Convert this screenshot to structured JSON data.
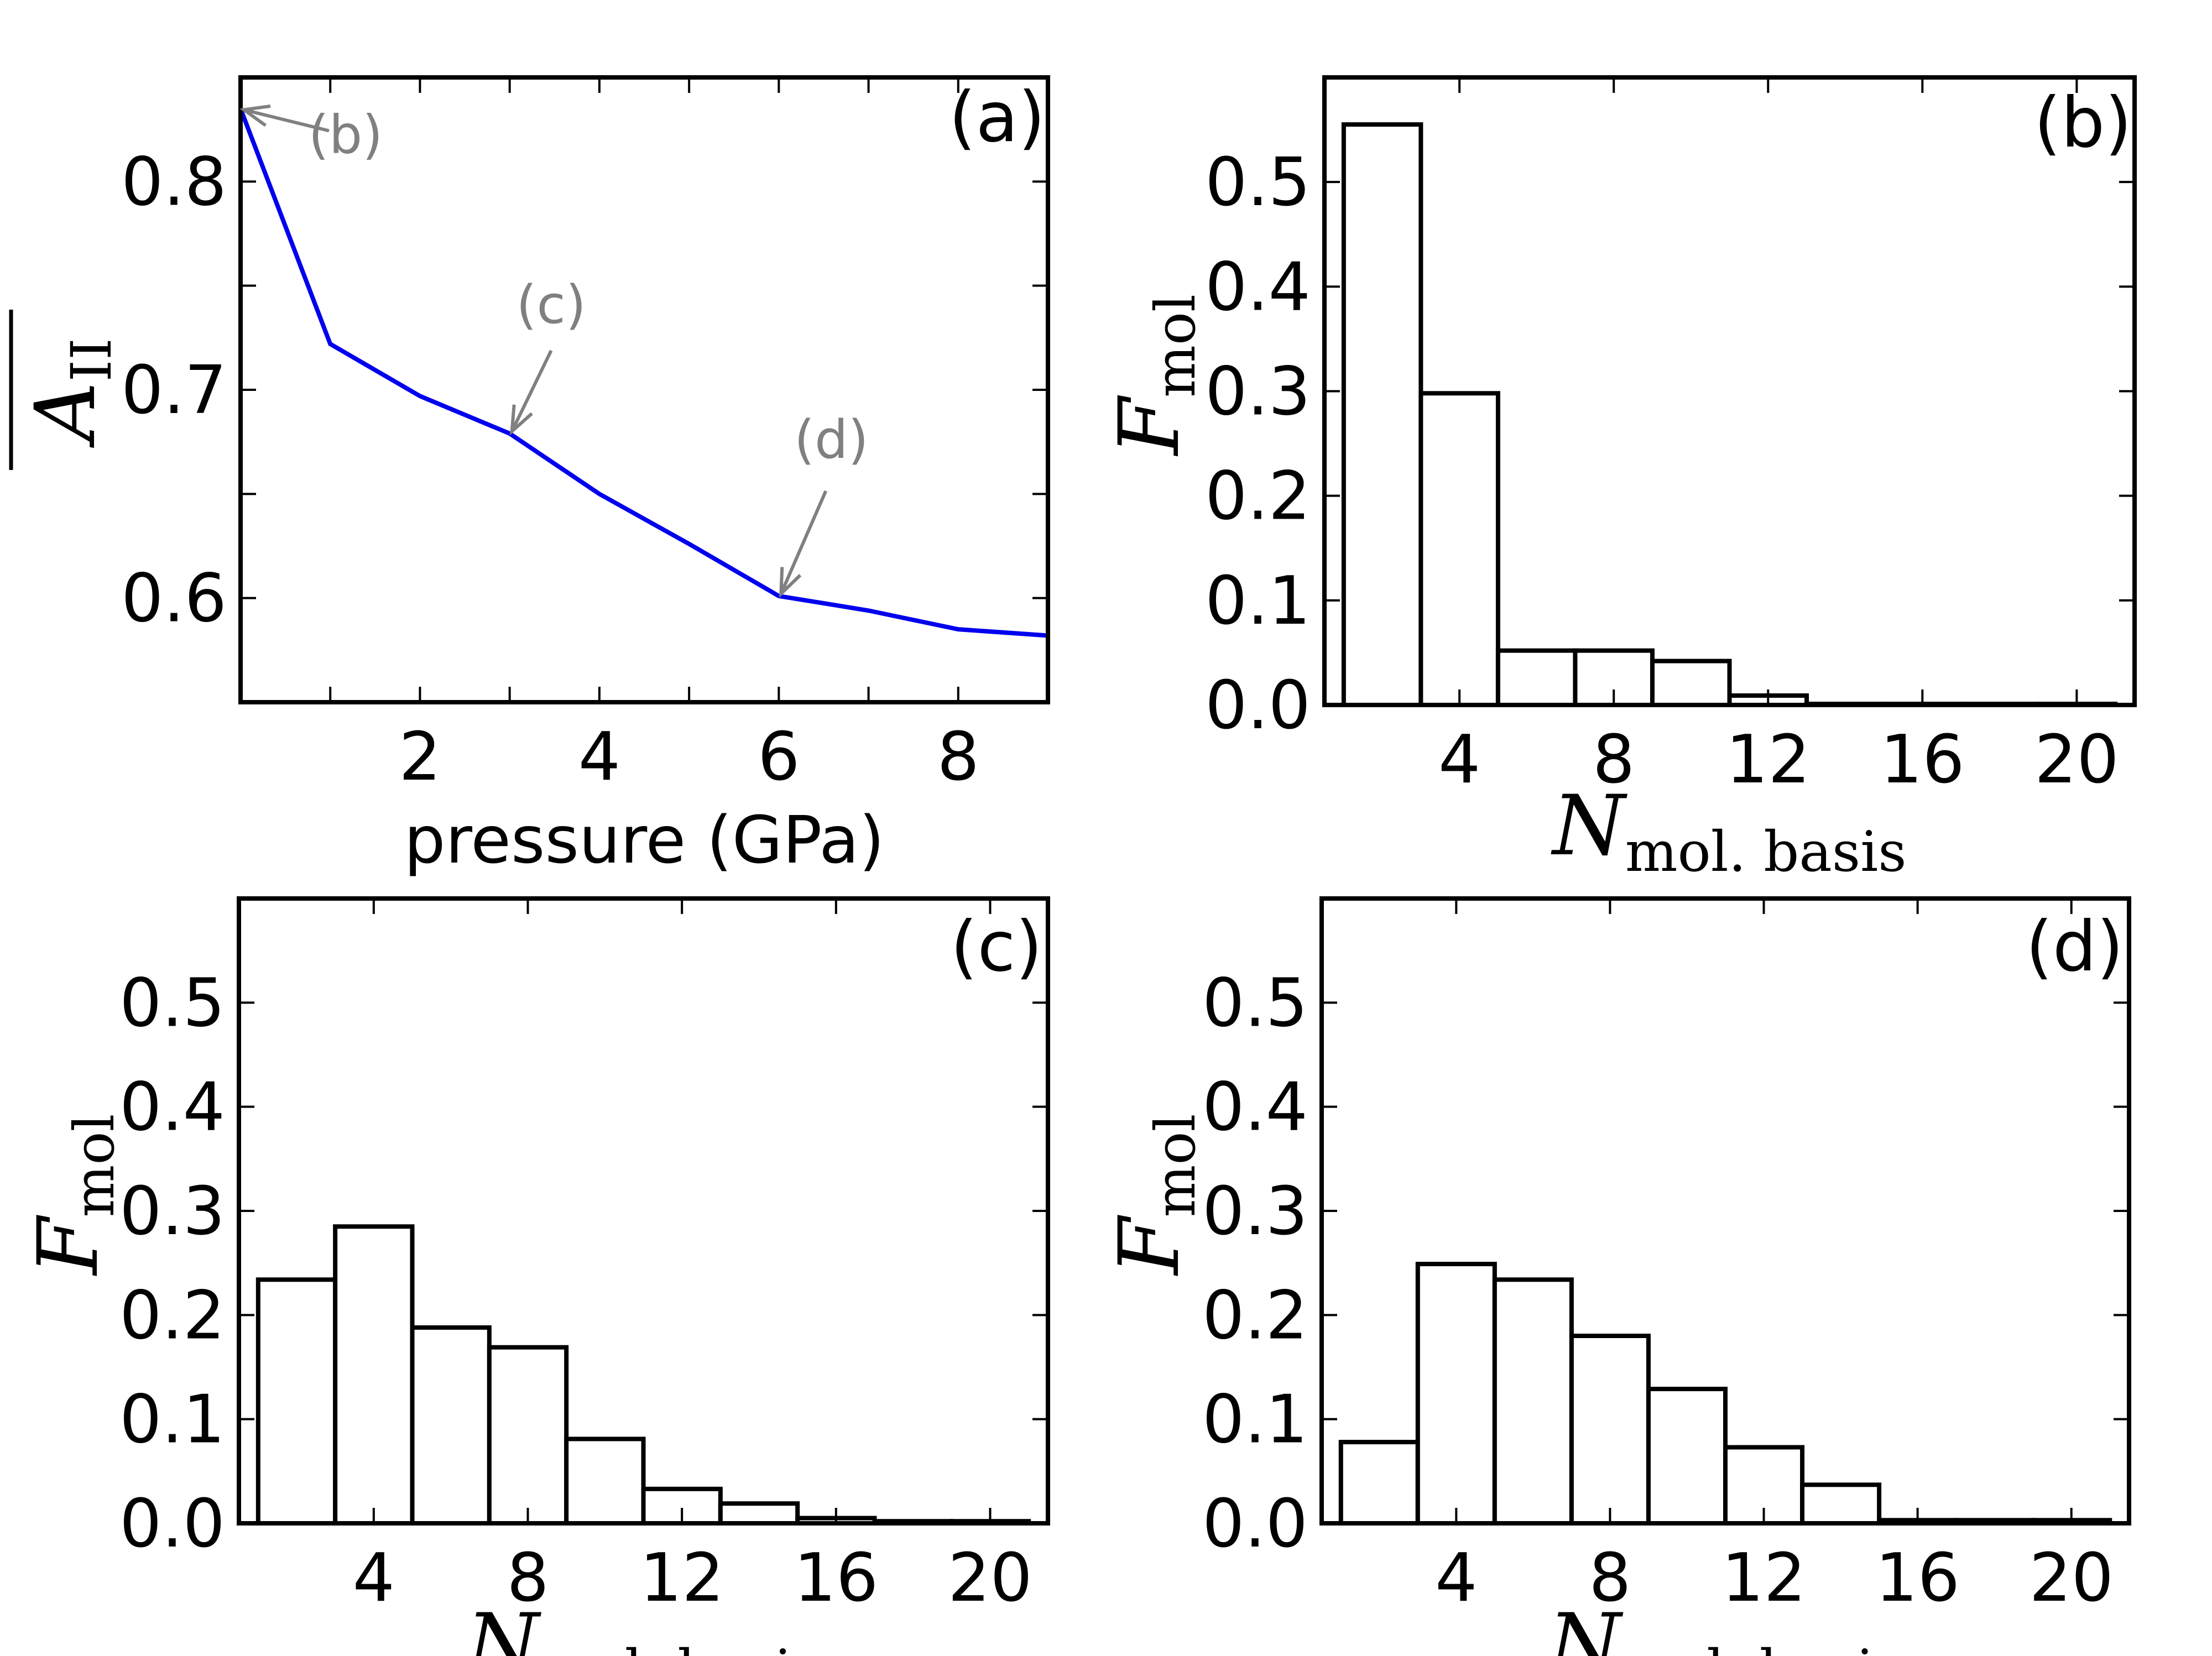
{
  "colors": {
    "line": "#0000ee",
    "annotation": "#808080",
    "axes": "#000000"
  },
  "chart_data": [
    {
      "id": "a",
      "type": "line",
      "panel_label": "(a)",
      "xlabel": "pressure (GPa)",
      "ylabel": "A",
      "ylabel_sub": "II",
      "xlim": [
        0,
        9
      ],
      "ylim": [
        0.55,
        0.85
      ],
      "xticks": [
        2,
        4,
        6,
        8
      ],
      "yticks": [
        0.6,
        0.7,
        0.8
      ],
      "x": [
        0,
        1,
        2,
        3,
        4,
        5,
        6,
        7,
        8,
        9
      ],
      "values": [
        0.835,
        0.722,
        0.697,
        0.679,
        0.65,
        0.626,
        0.601,
        0.594,
        0.585,
        0.582
      ],
      "annotations": [
        {
          "text": "(b)",
          "x": 0,
          "y": 0.835
        },
        {
          "text": "(c)",
          "x": 3,
          "y": 0.679
        },
        {
          "text": "(d)",
          "x": 6,
          "y": 0.601
        }
      ]
    },
    {
      "id": "b",
      "type": "bar",
      "panel_label": "(b)",
      "xlabel": "N",
      "xlabel_sub": "mol. basis",
      "ylabel": "F",
      "ylabel_sub": "mol",
      "xlim": [
        0.5,
        21.5
      ],
      "ylim": [
        0,
        0.6
      ],
      "xticks": [
        4,
        8,
        12,
        16,
        20
      ],
      "yticks": [
        0.0,
        0.1,
        0.2,
        0.3,
        0.4,
        0.5
      ],
      "bin_edges": [
        1,
        3,
        5,
        7,
        9,
        11,
        13,
        15,
        17,
        19,
        21
      ],
      "values": [
        0.555,
        0.298,
        0.052,
        0.052,
        0.042,
        0.009,
        0.001,
        0.001,
        0.001,
        0.001
      ]
    },
    {
      "id": "c",
      "type": "bar",
      "panel_label": "(c)",
      "xlabel": "N",
      "xlabel_sub": "mol. basis",
      "ylabel": "F",
      "ylabel_sub": "mol",
      "xlim": [
        0.5,
        21.5
      ],
      "ylim": [
        0,
        0.6
      ],
      "xticks": [
        4,
        8,
        12,
        16,
        20
      ],
      "yticks": [
        0.0,
        0.1,
        0.2,
        0.3,
        0.4,
        0.5
      ],
      "bin_edges": [
        1,
        3,
        5,
        7,
        9,
        11,
        13,
        15,
        17,
        19,
        21
      ],
      "values": [
        0.234,
        0.285,
        0.188,
        0.169,
        0.081,
        0.033,
        0.019,
        0.005,
        0.002,
        0.002
      ]
    },
    {
      "id": "d",
      "type": "bar",
      "panel_label": "(d)",
      "xlabel": "N",
      "xlabel_sub": "mol. basis",
      "ylabel": "F",
      "ylabel_sub": "mol",
      "xlim": [
        0.5,
        21.5
      ],
      "ylim": [
        0,
        0.6
      ],
      "xticks": [
        4,
        8,
        12,
        16,
        20
      ],
      "yticks": [
        0.0,
        0.1,
        0.2,
        0.3,
        0.4,
        0.5
      ],
      "bin_edges": [
        1,
        3,
        5,
        7,
        9,
        11,
        13,
        15,
        17,
        19,
        21
      ],
      "values": [
        0.078,
        0.249,
        0.234,
        0.18,
        0.129,
        0.073,
        0.037,
        0.003,
        0.003,
        0.003
      ]
    }
  ]
}
